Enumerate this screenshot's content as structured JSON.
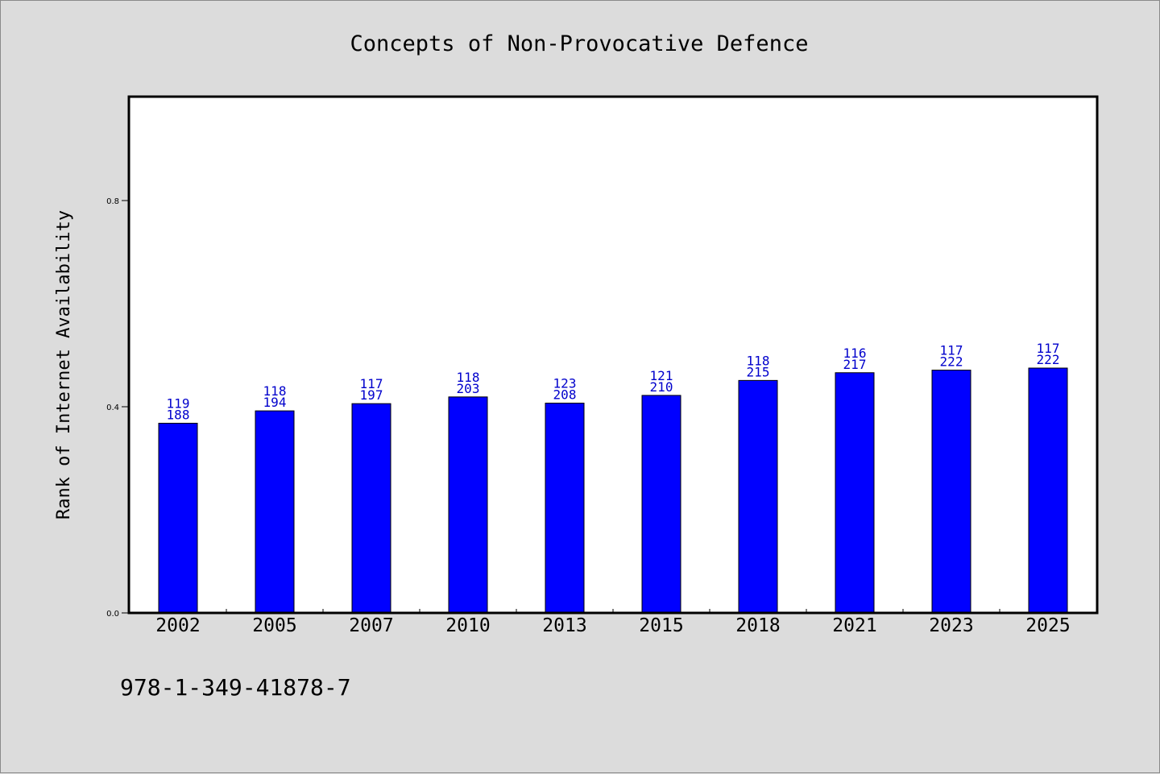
{
  "chart_data": {
    "type": "bar",
    "title": "Concepts of Non-Provocative Defence",
    "xlabel": "",
    "ylabel": "Rank of Internet Availability",
    "ylim": [
      0,
      1.0
    ],
    "yticks": [
      "0.0",
      "0.4",
      "0.8"
    ],
    "ytick_values": [
      0.0,
      0.4,
      0.8
    ],
    "grid": false,
    "legend": "none",
    "categories": [
      "2002",
      "2005",
      "2007",
      "2010",
      "2013",
      "2015",
      "2018",
      "2021",
      "2023",
      "2025"
    ],
    "values": [
      0.368,
      0.392,
      0.406,
      0.419,
      0.407,
      0.422,
      0.451,
      0.466,
      0.471,
      0.475
    ],
    "labels_top": [
      "119",
      "118",
      "117",
      "118",
      "123",
      "121",
      "118",
      "116",
      "117",
      "117"
    ],
    "labels_bottom": [
      "188",
      "194",
      "197",
      "203",
      "208",
      "210",
      "215",
      "217",
      "222",
      "222"
    ],
    "bar_color": "#0000ff",
    "label_color": "#0000cc",
    "background_color": "#dcdcdc",
    "plot_background": "#ffffff"
  },
  "footer": {
    "isbn": "978-1-349-41878-7"
  }
}
